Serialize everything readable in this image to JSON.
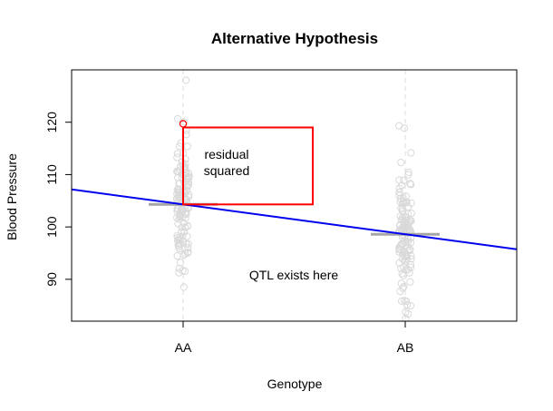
{
  "chart_data": {
    "type": "scatter",
    "title": "Alternative Hypothesis",
    "xlabel": "Genotype",
    "ylabel": "Blood Pressure",
    "categories": [
      "AA",
      "AB"
    ],
    "ylim": [
      82,
      130
    ],
    "yticks": [
      90,
      100,
      110,
      120
    ],
    "grid": false,
    "legend": "none",
    "group_means": [
      104.3,
      98.6
    ],
    "regression_line": {
      "color": "#0000ee",
      "intercept_at_AA": 104.3,
      "slope_per_genotype": -5.7
    },
    "highlighted_point": {
      "category": "AA",
      "y": 119.7,
      "color": "#ff0000"
    },
    "residual_box": {
      "y_low": 104.3,
      "y_high": 119.0,
      "color": "#ff0000"
    },
    "annotations": [
      "residual",
      "squared",
      "QTL exists here"
    ],
    "point_color": "#d9d9d9",
    "mean_bar_color": "#a6a6a6",
    "series": [
      {
        "category": "AA",
        "n": 130,
        "min": 88.5,
        "max": 128,
        "mean": 104.3,
        "sd": 6.5
      },
      {
        "category": "AB",
        "n": 130,
        "min": 82.5,
        "max": 119.3,
        "mean": 98.6,
        "sd": 6.5
      }
    ]
  }
}
